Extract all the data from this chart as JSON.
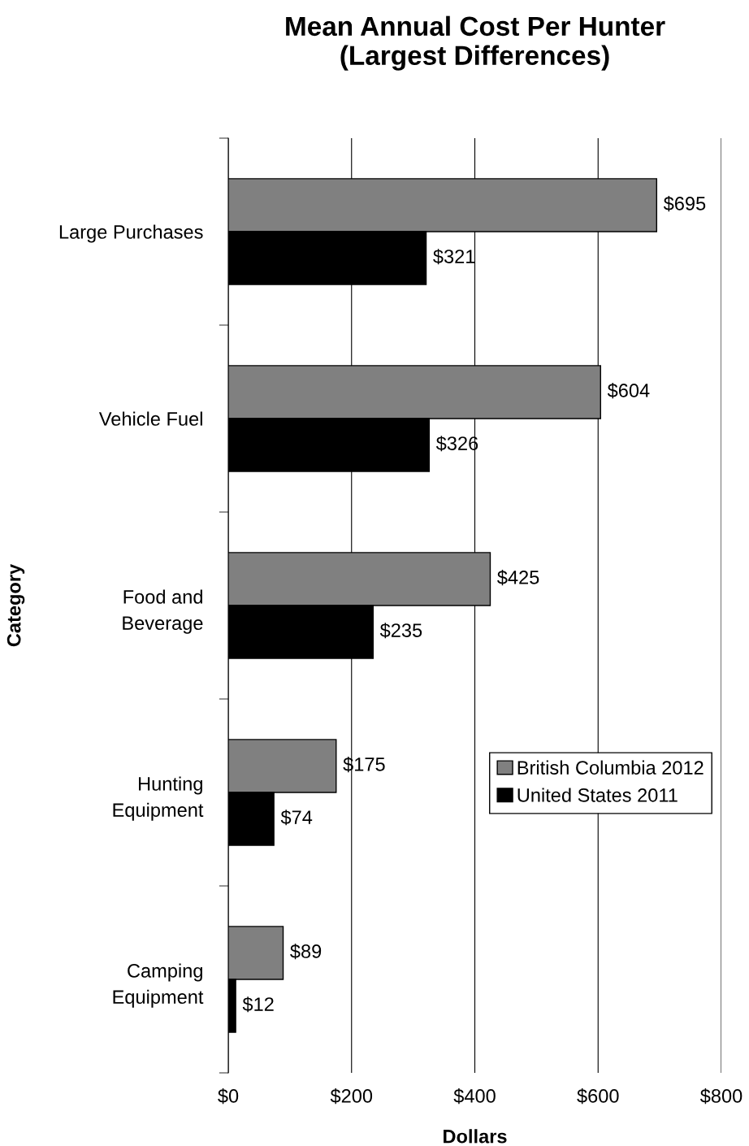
{
  "chart_data": {
    "type": "bar",
    "orientation": "horizontal",
    "title": "Mean Annual Cost Per Hunter\n(Largest Differences)",
    "xlabel": "Dollars",
    "ylabel": "Category",
    "categories": [
      "Large Purchases",
      "Vehicle Fuel",
      "Food and\nBeverage",
      "Hunting\nEquipment",
      "Camping\nEquipment"
    ],
    "series": [
      {
        "name": "British Columbia 2012",
        "color": "#808080",
        "values": [
          695,
          604,
          425,
          175,
          89
        ],
        "value_labels": [
          "$695",
          "$604",
          "$425",
          "$175",
          "$89"
        ]
      },
      {
        "name": "United States 2011",
        "color": "#000000",
        "values": [
          321,
          326,
          235,
          74,
          12
        ],
        "value_labels": [
          "$321",
          "$326",
          "$235",
          "$74",
          "$12"
        ]
      }
    ],
    "xlim": [
      0,
      800
    ],
    "xticks": [
      {
        "value": 0,
        "label": "$0"
      },
      {
        "value": 200,
        "label": "$200"
      },
      {
        "value": 400,
        "label": "$400"
      },
      {
        "value": 600,
        "label": "$600"
      },
      {
        "value": 800,
        "label": "$800"
      }
    ],
    "grid": "x",
    "legend": "right"
  }
}
